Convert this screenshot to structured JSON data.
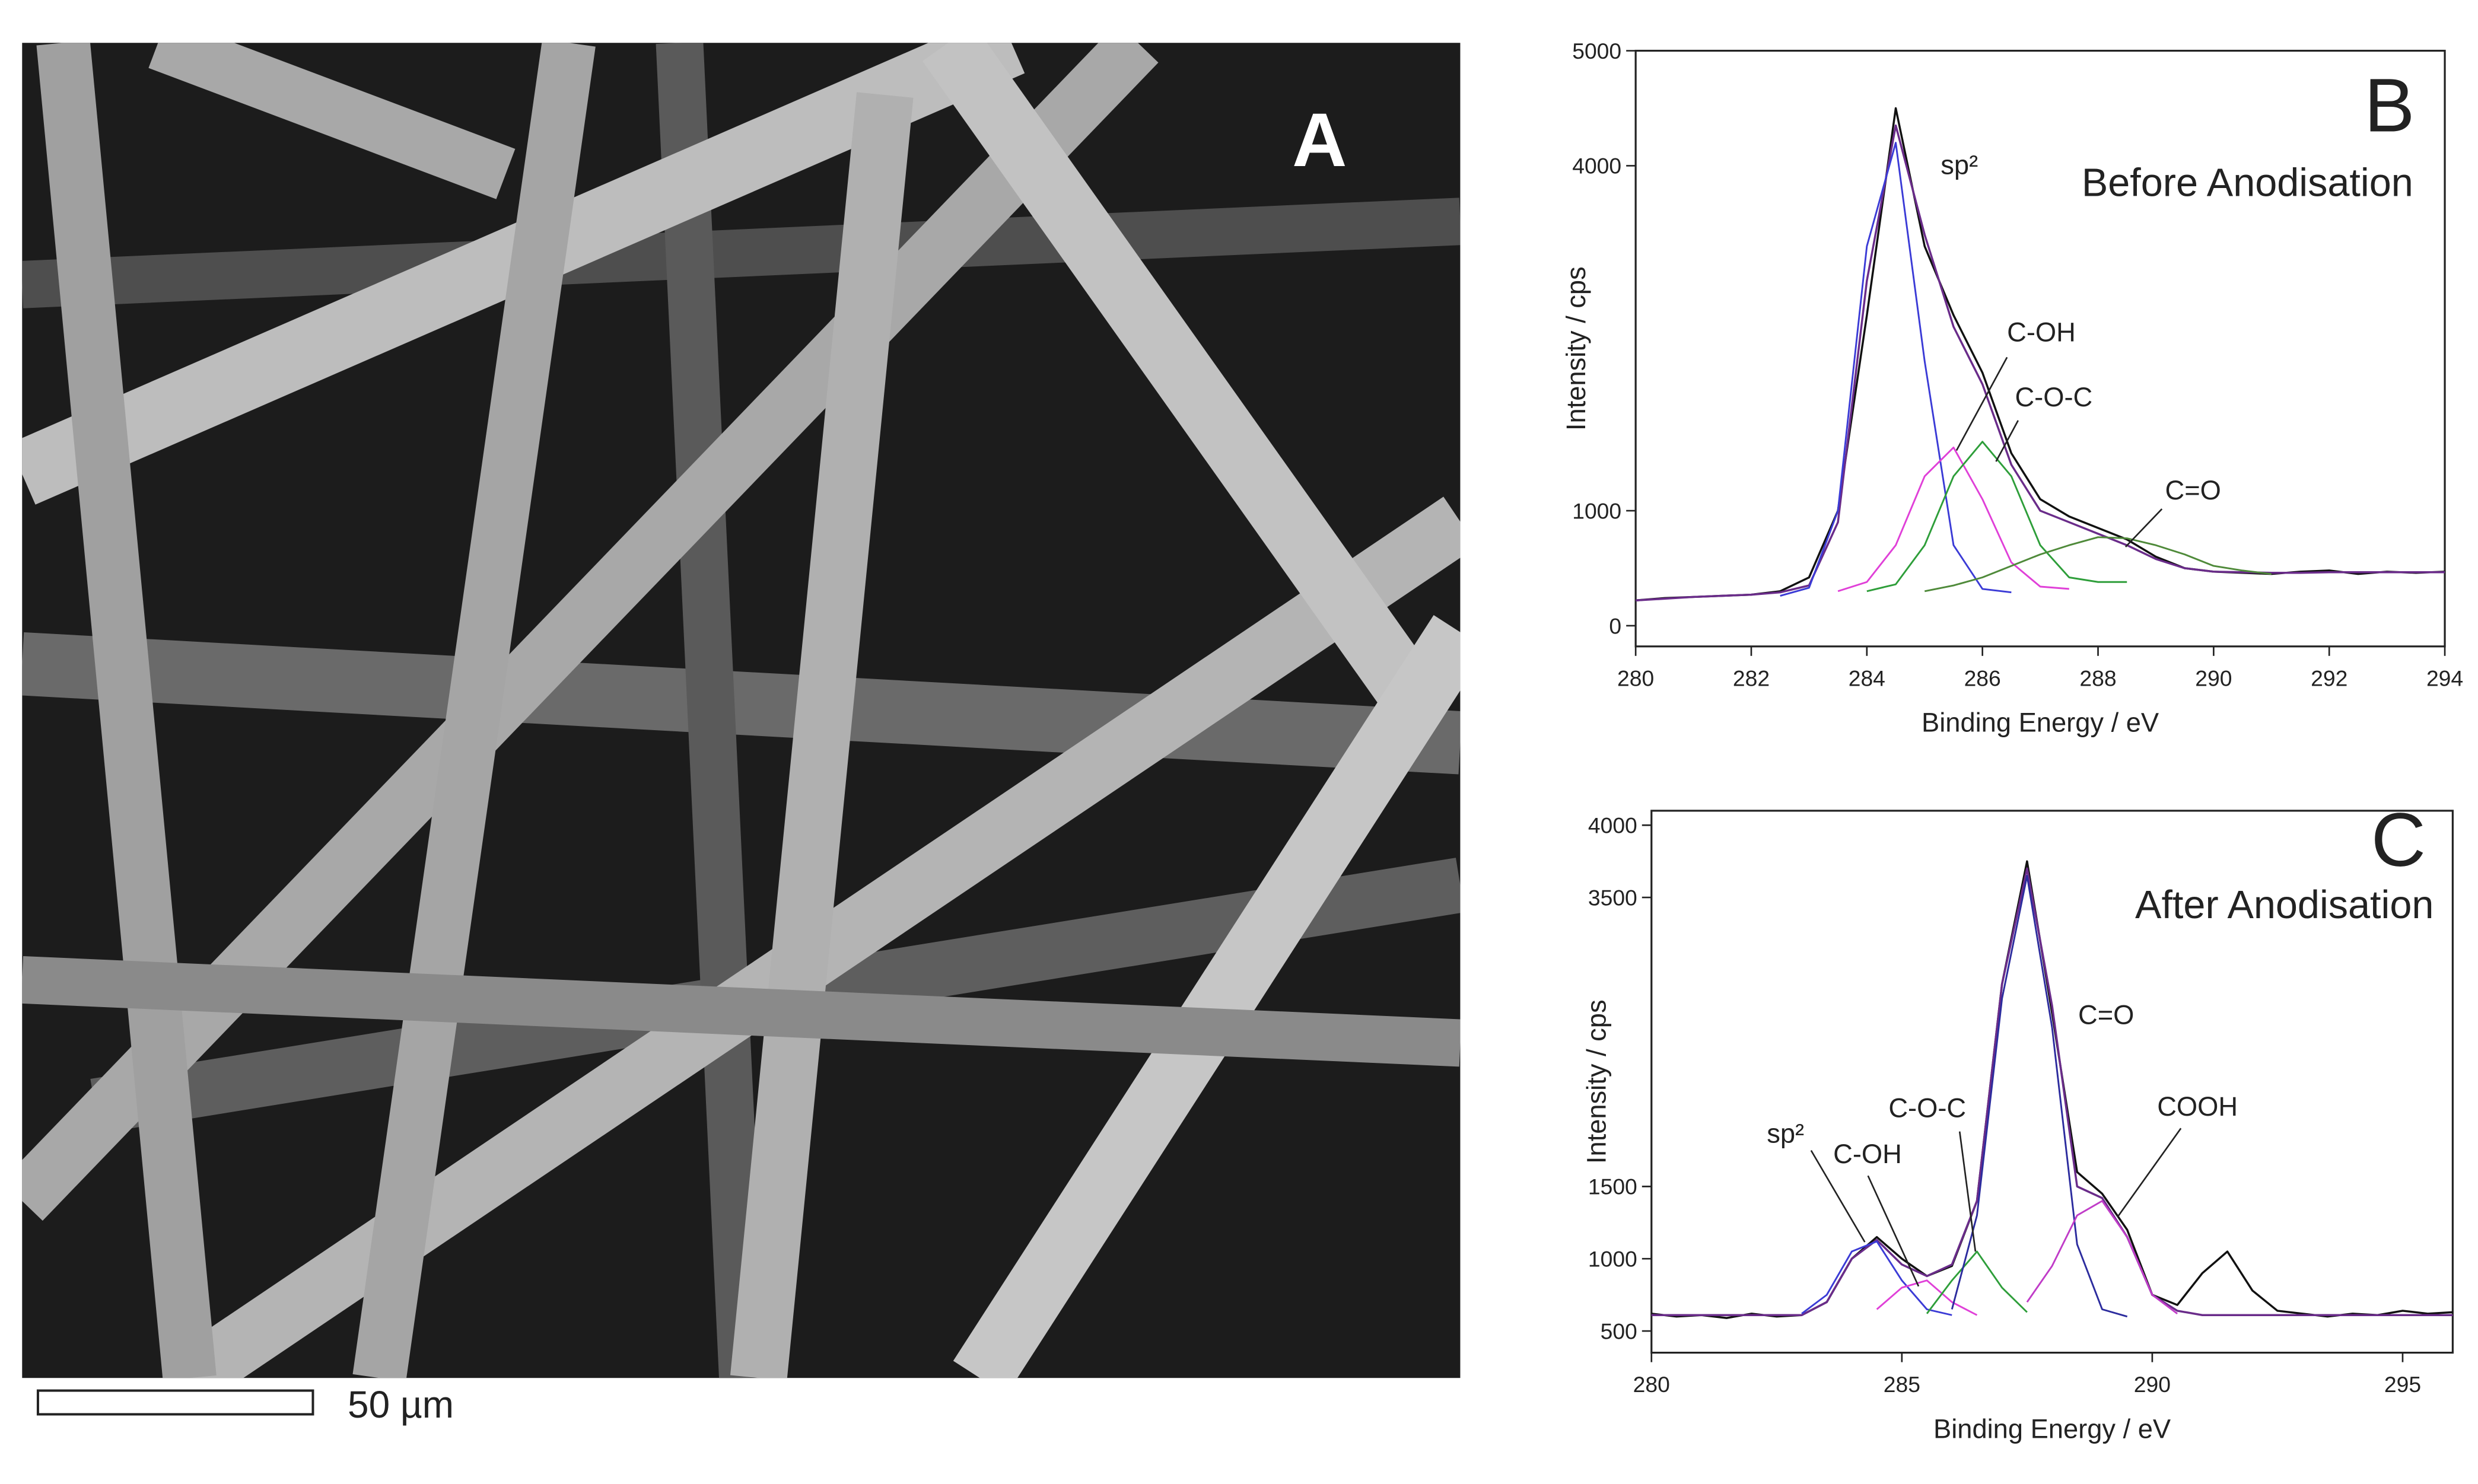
{
  "panel_a": {
    "label": "A",
    "scale_bar": "50 µm"
  },
  "chart_data": [
    {
      "type": "line",
      "panel_label": "B",
      "title": "Before Anodisation",
      "x_label": "Binding Energy / eV",
      "y_label": "Intensity / cps",
      "xlim": [
        280,
        294
      ],
      "xticks": [
        280,
        282,
        284,
        286,
        288,
        290,
        292,
        294
      ],
      "ylim": [
        -180,
        5000
      ],
      "yticks": [
        0,
        1000,
        4000,
        5000
      ],
      "x": [
        280,
        280.5,
        281,
        281.5,
        282,
        282.5,
        283,
        283.5,
        284,
        284.5,
        285,
        285.5,
        286,
        286.5,
        287,
        287.5,
        288,
        288.5,
        289,
        289.5,
        290,
        290.5,
        291,
        291.5,
        292,
        292.5,
        293,
        293.5,
        294
      ],
      "series": [
        {
          "color": "#111111",
          "values": [
            220,
            240,
            250,
            260,
            270,
            300,
            420,
            1000,
            2700,
            4500,
            3300,
            2700,
            2200,
            1500,
            1100,
            950,
            850,
            750,
            600,
            500,
            470,
            460,
            450,
            470,
            480,
            450,
            470,
            460,
            470
          ]
        },
        {
          "color": "#6a2c8a",
          "values": [
            220,
            235,
            250,
            260,
            270,
            290,
            350,
            900,
            3000,
            4350,
            3400,
            2600,
            2100,
            1400,
            1000,
            900,
            800,
            700,
            580,
            500,
            470,
            465,
            460,
            460,
            465,
            465,
            465,
            465,
            465
          ]
        },
        {
          "name": "sp²",
          "color": "#3b3bd6",
          "values": [
            null,
            null,
            null,
            null,
            null,
            260,
            330,
            1000,
            3300,
            4200,
            2300,
            700,
            320,
            290,
            null,
            null,
            null,
            null,
            null,
            null,
            null,
            null,
            null,
            null,
            null,
            null,
            null,
            null,
            null
          ]
        },
        {
          "name": "C-OH",
          "color": "#e040d8",
          "values": [
            null,
            null,
            null,
            null,
            null,
            null,
            null,
            300,
            380,
            700,
            1300,
            1550,
            1100,
            550,
            340,
            320,
            null,
            null,
            null,
            null,
            null,
            null,
            null,
            null,
            null,
            null,
            null,
            null,
            null
          ]
        },
        {
          "name": "C-O-C",
          "color": "#2e9e3a",
          "values": [
            null,
            null,
            null,
            null,
            null,
            null,
            null,
            null,
            300,
            360,
            700,
            1300,
            1600,
            1300,
            700,
            420,
            380,
            380,
            null,
            null,
            null,
            null,
            null,
            null,
            null,
            null,
            null,
            null,
            null
          ]
        },
        {
          "name": "C=O",
          "color": "#4f8a3a",
          "values": [
            null,
            null,
            null,
            null,
            null,
            null,
            null,
            null,
            null,
            null,
            300,
            350,
            420,
            520,
            620,
            700,
            770,
            760,
            700,
            620,
            520,
            480,
            450,
            null,
            null,
            null,
            null,
            null,
            null
          ]
        }
      ]
    },
    {
      "type": "line",
      "panel_label": "C",
      "title": "After Anodisation",
      "x_label": "Binding Energy / eV",
      "y_label": "Intensity / cps",
      "xlim": [
        280,
        296
      ],
      "xticks": [
        280,
        285,
        290,
        295
      ],
      "ylim": [
        350,
        4100
      ],
      "yticks": [
        500,
        1000,
        1500,
        3500,
        4000
      ],
      "x": [
        280,
        280.5,
        281,
        281.5,
        282,
        282.5,
        283,
        283.5,
        284,
        284.5,
        285,
        285.5,
        286,
        286.5,
        287,
        287.5,
        288,
        288.5,
        289,
        289.5,
        290,
        290.5,
        291,
        291.5,
        292,
        292.5,
        293,
        293.5,
        294,
        294.5,
        295,
        295.5,
        296
      ],
      "series": [
        {
          "color": "#111111",
          "values": [
            620,
            600,
            610,
            590,
            620,
            600,
            610,
            700,
            1000,
            1150,
            1000,
            880,
            950,
            1400,
            2900,
            3750,
            2700,
            1600,
            1450,
            1200,
            750,
            680,
            900,
            1050,
            780,
            640,
            620,
            600,
            620,
            610,
            640,
            620,
            630
          ]
        },
        {
          "color": "#6a2c8a",
          "values": [
            610,
            610,
            610,
            610,
            610,
            610,
            610,
            700,
            1000,
            1130,
            960,
            880,
            960,
            1400,
            2900,
            3700,
            2750,
            1500,
            1420,
            1150,
            750,
            640,
            610,
            610,
            610,
            610,
            610,
            610,
            610,
            610,
            610,
            610,
            610
          ]
        },
        {
          "name": "sp²",
          "color": "#3b3bd6",
          "values": [
            null,
            null,
            null,
            null,
            null,
            null,
            620,
            750,
            1050,
            1120,
            850,
            650,
            610,
            null,
            null,
            null,
            null,
            null,
            null,
            null,
            null,
            null,
            null,
            null,
            null,
            null,
            null,
            null,
            null,
            null,
            null,
            null,
            null
          ]
        },
        {
          "name": "C-OH",
          "color": "#e040d8",
          "values": [
            null,
            null,
            null,
            null,
            null,
            null,
            null,
            null,
            null,
            650,
            800,
            850,
            700,
            610,
            null,
            null,
            null,
            null,
            null,
            null,
            null,
            null,
            null,
            null,
            null,
            null,
            null,
            null,
            null,
            null,
            null,
            null,
            null
          ]
        },
        {
          "name": "C-O-C",
          "color": "#2e9e3a",
          "values": [
            null,
            null,
            null,
            null,
            null,
            null,
            null,
            null,
            null,
            null,
            null,
            620,
            850,
            1050,
            800,
            630,
            null,
            null,
            null,
            null,
            null,
            null,
            null,
            null,
            null,
            null,
            null,
            null,
            null,
            null,
            null,
            null,
            null
          ]
        },
        {
          "name": "C=O",
          "color": "#2c2c9e",
          "values": [
            null,
            null,
            null,
            null,
            null,
            null,
            null,
            null,
            null,
            null,
            null,
            null,
            650,
            1300,
            2800,
            3650,
            2600,
            1100,
            650,
            600,
            null,
            null,
            null,
            null,
            null,
            null,
            null,
            null,
            null,
            null,
            null,
            null,
            null
          ]
        },
        {
          "name": "COOH",
          "color": "#c03cc8",
          "values": [
            null,
            null,
            null,
            null,
            null,
            null,
            null,
            null,
            null,
            null,
            null,
            null,
            null,
            null,
            null,
            700,
            950,
            1300,
            1400,
            1150,
            750,
            620,
            null,
            null,
            null,
            null,
            null,
            null,
            null,
            null,
            null,
            null,
            null
          ]
        }
      ]
    }
  ]
}
